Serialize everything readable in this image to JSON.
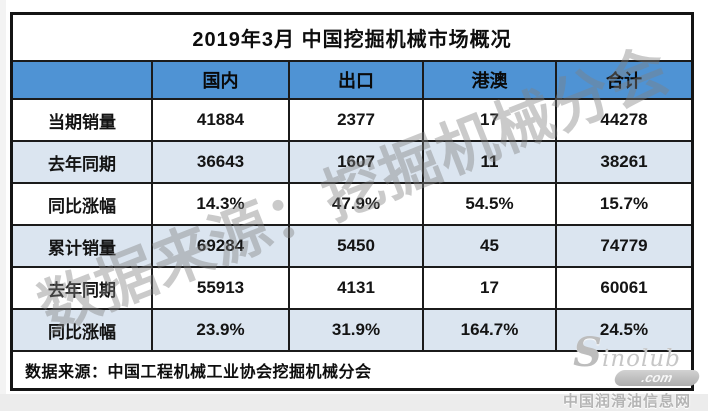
{
  "chart_data": {
    "type": "table",
    "title": "2019年3月 中国挖掘机械市场概况",
    "columns": [
      "",
      "国内",
      "出口",
      "港澳",
      "合计"
    ],
    "rows": [
      {
        "label": "当期销量",
        "values": [
          "41884",
          "2377",
          "17",
          "44278"
        ]
      },
      {
        "label": "去年同期",
        "values": [
          "36643",
          "1607",
          "11",
          "38261"
        ]
      },
      {
        "label": "同比涨幅",
        "values": [
          "14.3%",
          "47.9%",
          "54.5%",
          "15.7%"
        ]
      },
      {
        "label": "累计销量",
        "values": [
          "69284",
          "5450",
          "45",
          "74779"
        ]
      },
      {
        "label": "去年同期",
        "values": [
          "55913",
          "4131",
          "17",
          "60061"
        ]
      },
      {
        "label": "同比涨幅",
        "values": [
          "23.9%",
          "31.9%",
          "164.7%",
          "24.5%"
        ]
      }
    ],
    "source": "数据来源：中国工程机械工业协会挖掘机械分会"
  },
  "watermark": {
    "diagonal_text": "数据来源：挖掘机械分会"
  },
  "logo": {
    "initial": "S",
    "name_rest": "inolub",
    "domain": ".com",
    "site_name": "中国润滑油信息网"
  },
  "colors": {
    "header_bg": "#4f93d4",
    "alt_row_bg": "#dbe5f0",
    "border": "#1b1b1b",
    "watermark_gray": "#808080"
  }
}
